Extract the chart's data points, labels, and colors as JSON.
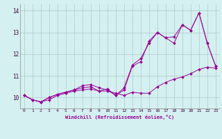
{
  "xlabel": "Windchill (Refroidissement éolien,°C)",
  "background_color": "#d4f0f0",
  "grid_color": "#b0c8c8",
  "line_color": "#990099",
  "xlim": [
    -0.5,
    23.5
  ],
  "ylim": [
    9.5,
    14.3
  ],
  "yticks": [
    10,
    11,
    12,
    13,
    14
  ],
  "xticks": [
    0,
    1,
    2,
    3,
    4,
    5,
    6,
    7,
    8,
    9,
    10,
    11,
    12,
    13,
    14,
    15,
    16,
    17,
    18,
    19,
    20,
    21,
    22,
    23
  ],
  "series": [
    [
      10.1,
      9.9,
      9.8,
      9.9,
      10.1,
      10.2,
      10.3,
      10.35,
      10.4,
      10.3,
      10.3,
      10.2,
      10.1,
      10.25,
      10.2,
      10.2,
      10.5,
      10.7,
      10.85,
      10.95,
      11.1,
      11.3,
      11.4,
      11.35
    ],
    [
      10.1,
      9.9,
      9.8,
      10.0,
      10.15,
      10.25,
      10.35,
      10.45,
      10.5,
      10.3,
      10.4,
      10.1,
      10.45,
      11.5,
      11.8,
      12.5,
      13.0,
      12.75,
      12.8,
      13.35,
      13.1,
      13.9,
      12.5,
      11.45
    ],
    [
      10.1,
      9.9,
      9.8,
      10.0,
      10.15,
      10.25,
      10.35,
      10.55,
      10.6,
      10.45,
      10.35,
      10.1,
      10.35,
      11.45,
      11.65,
      12.6,
      13.0,
      12.75,
      12.5,
      13.35,
      13.1,
      13.9,
      12.5,
      11.45
    ]
  ]
}
